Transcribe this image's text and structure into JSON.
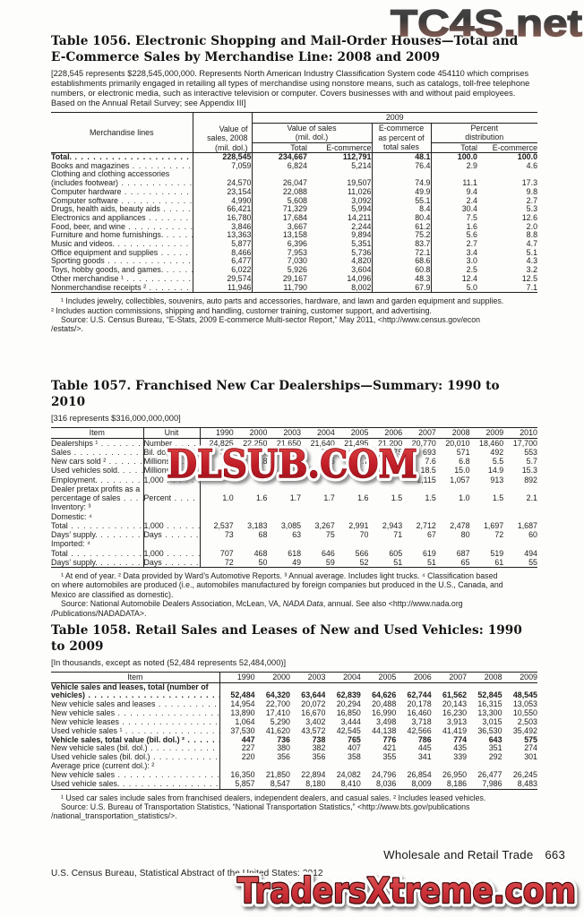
{
  "watermarks": {
    "top": "TC4S.net",
    "middle": "DLSUB.COM",
    "bottom": "TradersXtreme.com",
    "red_accent": "#c4242b"
  },
  "footer": {
    "section_title": "Wholesale and Retail Trade",
    "page_number": "663",
    "census_line": "U.S. Census Bureau, Statistical Abstract of the United States: 2012"
  },
  "t1056": {
    "title_line1": "Table 1056. Electronic Shopping and Mail-Order Houses—Total and",
    "title_line2": "E-Commerce Sales by Merchandise Line: 2008 and 2009",
    "note_lines": [
      "[228,545 represents $228,545,000,000. Represents North American Industry Classification System code 454110 which comprises",
      "establishments primarily engaged in retailing all types of merchandise using nonstore means, such as catalogs, toll-free telephone",
      "numbers, or electronic media, such as interactive television or computer. Covers businesses with and without paid employees.",
      "Based on the Annual Retail Survey; see Appendix III]"
    ],
    "header": {
      "merch": "Merchandise lines",
      "v2008_l1": "Value of",
      "v2008_l2": "sales, 2008",
      "v2008_l3": "(mil. dol.)",
      "year": "2009",
      "vos_l1": "Value of sales",
      "vos_l2": "(mil. dol.)",
      "epct_l1": "E-commerce",
      "epct_l2": "as percent of",
      "epct_l3": "total sales",
      "pd_l1": "Percent",
      "pd_l2": "distribution",
      "total": "Total",
      "ecommerce": "E-commerce",
      "total2": "Total",
      "ecommerce2": "E-commerce"
    },
    "rows": [
      {
        "label": "Total.",
        "indent": 2,
        "bold": true,
        "leader": true,
        "values": [
          "228,545",
          "234,667",
          "112,791",
          "48.1",
          "100.0",
          "100.0"
        ]
      },
      {
        "label": "Books and magazines",
        "indent": 0,
        "leader": true,
        "values": [
          "7,059",
          "6,824",
          "5,214",
          "76.4",
          "2.9",
          "4.6"
        ]
      },
      {
        "label": "Clothing and clothing accessories",
        "indent": 0,
        "leader": false,
        "values": [
          "",
          "",
          "",
          "",
          "",
          ""
        ]
      },
      {
        "label": "(includes footwear)",
        "indent": 1,
        "leader": true,
        "values": [
          "24,570",
          "26,047",
          "19,507",
          "74.9",
          "11.1",
          "17.3"
        ]
      },
      {
        "label": "Computer hardware",
        "indent": 0,
        "leader": true,
        "values": [
          "23,154",
          "22,088",
          "11,026",
          "49.9",
          "9.4",
          "9.8"
        ]
      },
      {
        "label": "Computer software",
        "indent": 0,
        "leader": true,
        "values": [
          "4,990",
          "5,608",
          "3,092",
          "55.1",
          "2.4",
          "2.7"
        ]
      },
      {
        "label": "Drugs, health aids, beauty aids",
        "indent": 0,
        "leader": true,
        "values": [
          "66,421",
          "71,329",
          "5,994",
          "8.4",
          "30.4",
          "5.3"
        ]
      },
      {
        "label": "Electronics and appliances",
        "indent": 0,
        "leader": true,
        "values": [
          "16,780",
          "17,684",
          "14,211",
          "80.4",
          "7.5",
          "12.6"
        ]
      },
      {
        "label": "Food, beer, and wine",
        "indent": 0,
        "leader": true,
        "values": [
          "3,846",
          "3,667",
          "2,244",
          "61.2",
          "1.6",
          "2.0"
        ]
      },
      {
        "label": "Furniture and home furnishings.",
        "indent": 0,
        "leader": true,
        "values": [
          "13,363",
          "13,158",
          "9,894",
          "75.2",
          "5.6",
          "8.8"
        ]
      },
      {
        "label": "Music and videos.",
        "indent": 0,
        "leader": true,
        "values": [
          "5,877",
          "6,396",
          "5,351",
          "83.7",
          "2.7",
          "4.7"
        ]
      },
      {
        "label": "Office equipment and supplies",
        "indent": 0,
        "leader": true,
        "values": [
          "8,466",
          "7,953",
          "5,736",
          "72.1",
          "3.4",
          "5.1"
        ]
      },
      {
        "label": "Sporting goods",
        "indent": 0,
        "leader": true,
        "values": [
          "6,477",
          "7,030",
          "4,820",
          "68.6",
          "3.0",
          "4.3"
        ]
      },
      {
        "label": "Toys, hobby goods, and games.",
        "indent": 0,
        "leader": true,
        "values": [
          "6,022",
          "5,926",
          "3,604",
          "60.8",
          "2.5",
          "3.2"
        ]
      },
      {
        "label": "Other merchandise ¹",
        "indent": 0,
        "leader": true,
        "values": [
          "29,574",
          "29,167",
          "14,096",
          "48.3",
          "12.4",
          "12.5"
        ]
      },
      {
        "label": "Nonmerchandise receipts ²",
        "indent": 0,
        "leader": true,
        "values": [
          "11,946",
          "11,790",
          "8,002",
          "67.9",
          "5.0",
          "7.1"
        ]
      }
    ],
    "footnotes": [
      {
        "indent": true,
        "parts": [
          {
            "t": "¹ Includes jewelry, collectibles, souvenirs, auto parts and accessories, hardware, and lawn and garden equipment and supplies."
          }
        ]
      },
      {
        "indent": false,
        "parts": [
          {
            "t": "² Includes auction commissions, shipping and handling, customer training, customer support, and advertising."
          }
        ]
      },
      {
        "indent": true,
        "parts": [
          {
            "t": "Source: U.S. Census Bureau, “E-Stats, 2009 E-commerce Multi-sector Report,” May 2011, <http://www.census.gov/econ"
          }
        ]
      },
      {
        "indent": false,
        "parts": [
          {
            "t": "/estats/>."
          }
        ]
      }
    ]
  },
  "t1057": {
    "title": "Table 1057. Franchised New Car Dealerships—Summary: 1990 to 2010",
    "note_lines": [
      "[316 represents $316,000,000,000]"
    ],
    "header": {
      "item": "Item",
      "unit": "Unit"
    },
    "years": [
      "1990",
      "2000",
      "2003",
      "2004",
      "2005",
      "2006",
      "2007",
      "2008",
      "2009",
      "2010"
    ],
    "rows": [
      {
        "label": "Dealerships ¹",
        "indent": 0,
        "leader": true,
        "unit": "Number",
        "unit_leader": true,
        "values": [
          "24,825",
          "22,250",
          "21,650",
          "21,640",
          "21,495",
          "21,200",
          "20,770",
          "20,010",
          "18,460",
          "17,700"
        ]
      },
      {
        "label": "Sales",
        "indent": 0,
        "leader": true,
        "unit": "Bil. dol.",
        "unit_leader": true,
        "values": [
          "316",
          "650",
          "699",
          "714",
          "699",
          "675",
          "693",
          "571",
          "492",
          "553"
        ]
      },
      {
        "label": "New cars sold ²",
        "indent": 0,
        "leader": true,
        "unit": "Millions.",
        "unit_leader": true,
        "values": [
          "9.3",
          "8.8",
          "7.6",
          "7.5",
          "7.7",
          "7.8",
          "7.6",
          "6.8",
          "5.5",
          "5.7"
        ]
      },
      {
        "label": "Used vehicles sold.",
        "indent": 0,
        "leader": true,
        "unit": "Millions.",
        "unit_leader": true,
        "values": [
          "",
          "",
          "",
          "",
          "",
          "",
          "18.5",
          "15.0",
          "14.9",
          "15.3"
        ]
      },
      {
        "label": "Employment.",
        "indent": 0,
        "leader": true,
        "unit": "1,000",
        "unit_leader": true,
        "values": [
          "",
          "",
          "",
          "",
          "",
          "",
          "1,115",
          "1,057",
          "913",
          "892"
        ]
      },
      {
        "label": "Dealer pretax profits as a",
        "indent": 0,
        "leader": false,
        "unit": "",
        "unit_leader": false,
        "values": [
          "",
          "",
          "",
          "",
          "",
          "",
          "",
          "",
          "",
          ""
        ]
      },
      {
        "label": "percentage of sales",
        "indent": 1,
        "leader": true,
        "unit": "Percent",
        "unit_leader": true,
        "values": [
          "1.0",
          "1.6",
          "1.7",
          "1.7",
          "1.6",
          "1.5",
          "1.5",
          "1.0",
          "1.5",
          "2.1"
        ]
      },
      {
        "label": "Inventory: ³",
        "indent": 0,
        "leader": false,
        "unit": "",
        "unit_leader": false,
        "values": [
          "",
          "",
          "",
          "",
          "",
          "",
          "",
          "",
          "",
          ""
        ]
      },
      {
        "label": "Domestic: ⁴",
        "indent": 1,
        "leader": false,
        "unit": "",
        "unit_leader": false,
        "values": [
          "",
          "",
          "",
          "",
          "",
          "",
          "",
          "",
          "",
          ""
        ]
      },
      {
        "label": "Total",
        "indent": 2,
        "leader": true,
        "unit": "1,000",
        "unit_leader": true,
        "values": [
          "2,537",
          "3,183",
          "3,085",
          "3,267",
          "2,991",
          "2,943",
          "2,712",
          "2,478",
          "1,697",
          "1,687"
        ]
      },
      {
        "label": "Days’ supply.",
        "indent": 2,
        "leader": true,
        "unit": "Days",
        "unit_leader": true,
        "values": [
          "73",
          "68",
          "63",
          "75",
          "70",
          "71",
          "67",
          "80",
          "72",
          "60"
        ]
      },
      {
        "label": "Imported: ⁴",
        "indent": 1,
        "leader": false,
        "unit": "",
        "unit_leader": false,
        "values": [
          "",
          "",
          "",
          "",
          "",
          "",
          "",
          "",
          "",
          ""
        ]
      },
      {
        "label": "Total",
        "indent": 2,
        "leader": true,
        "unit": "1,000",
        "unit_leader": true,
        "values": [
          "707",
          "468",
          "618",
          "646",
          "566",
          "605",
          "619",
          "687",
          "519",
          "494"
        ]
      },
      {
        "label": "Days’ supply.",
        "indent": 2,
        "leader": true,
        "unit": "Days",
        "unit_leader": true,
        "values": [
          "72",
          "50",
          "49",
          "59",
          "52",
          "51",
          "51",
          "65",
          "61",
          "55"
        ]
      }
    ],
    "footnotes": [
      {
        "indent": true,
        "parts": [
          {
            "t": "¹ At end of year. ² Data provided by Ward’s Automotive Reports. ³ Annual average. Includes light trucks. ⁴ Classification based"
          }
        ]
      },
      {
        "indent": false,
        "parts": [
          {
            "t": "on where automobiles are produced (i.e., automobiles manufactured by foreign companies but produced in the U.S., Canada, and"
          }
        ]
      },
      {
        "indent": false,
        "parts": [
          {
            "t": "Mexico are classified as domestic)."
          }
        ]
      },
      {
        "indent": true,
        "parts": [
          {
            "t": "Source: National Automobile Dealers Association, McLean, VA, "
          },
          {
            "t": "NADA Data",
            "i": true
          },
          {
            "t": ", annual. See also <http://www.nada.org"
          }
        ]
      },
      {
        "indent": false,
        "parts": [
          {
            "t": "/Publications/NADADATA>."
          }
        ]
      }
    ]
  },
  "t1058": {
    "title": "Table 1058. Retail Sales and Leases of New and Used Vehicles: 1990 to 2009",
    "note_lines": [
      "[In thousands, except as noted (52,484 represents 52,484,000)]"
    ],
    "header": {
      "item": "Item"
    },
    "years": [
      "1990",
      "2000",
      "2003",
      "2004",
      "2005",
      "2006",
      "2007",
      "2008",
      "2009"
    ],
    "rows": [
      {
        "label": "Vehicle sales and leases, total (number of",
        "indent": 2,
        "bold": true,
        "leader": false,
        "values": [
          "",
          "",
          "",
          "",
          "",
          "",
          "",
          "",
          ""
        ]
      },
      {
        "label": "vehicles)",
        "indent": 3,
        "bold": true,
        "leader": true,
        "values": [
          "52,484",
          "64,320",
          "63,644",
          "62,839",
          "64,626",
          "62,744",
          "61,562",
          "52,845",
          "48,545"
        ]
      },
      {
        "label": "New vehicle sales and leases",
        "indent": 0,
        "leader": true,
        "values": [
          "14,954",
          "22,700",
          "20,072",
          "20,294",
          "20,488",
          "20,178",
          "20,143",
          "16,315",
          "13,053"
        ]
      },
      {
        "label": "New vehicle sales",
        "indent": 2,
        "leader": true,
        "values": [
          "13,890",
          "17,410",
          "16,670",
          "16,850",
          "16,990",
          "16,460",
          "16,230",
          "13,300",
          "10,550"
        ]
      },
      {
        "label": "New vehicle leases",
        "indent": 2,
        "leader": true,
        "values": [
          "1,064",
          "5,290",
          "3,402",
          "3,444",
          "3,498",
          "3,718",
          "3,913",
          "3,015",
          "2,503"
        ]
      },
      {
        "label": "Used vehicle sales ¹",
        "indent": 0,
        "leader": true,
        "values": [
          "37,530",
          "41,620",
          "43,572",
          "42,545",
          "44,138",
          "42,566",
          "41,419",
          "36,530",
          "35,492"
        ]
      },
      {
        "label": "Vehicle sales, total value (bil. dol.) ²",
        "indent": 2,
        "bold": true,
        "leader": true,
        "values": [
          "447",
          "736",
          "738",
          "765",
          "776",
          "786",
          "774",
          "643",
          "575"
        ]
      },
      {
        "label": "New vehicle sales (bil. dol.)",
        "indent": 0,
        "leader": true,
        "values": [
          "227",
          "380",
          "382",
          "407",
          "421",
          "445",
          "435",
          "351",
          "274"
        ]
      },
      {
        "label": "Used vehicle sales (bil. dol.)",
        "indent": 0,
        "leader": true,
        "values": [
          "220",
          "356",
          "356",
          "358",
          "355",
          "341",
          "339",
          "292",
          "301"
        ]
      },
      {
        "label": "Average price (current dol.): ²",
        "indent": 1,
        "leader": false,
        "values": [
          "",
          "",
          "",
          "",
          "",
          "",
          "",
          "",
          ""
        ]
      },
      {
        "label": "New vehicle sales",
        "indent": 0,
        "leader": true,
        "values": [
          "16,350",
          "21,850",
          "22,894",
          "24,082",
          "24,796",
          "26,854",
          "26,950",
          "26,477",
          "26,245"
        ]
      },
      {
        "label": "Used vehicle sales.",
        "indent": 0,
        "leader": true,
        "values": [
          "5,857",
          "8,547",
          "8,180",
          "8,410",
          "8,036",
          "8,009",
          "8,186",
          "7,986",
          "8,483"
        ]
      }
    ],
    "footnotes": [
      {
        "indent": true,
        "parts": [
          {
            "t": "¹ Used car sales include sales from franchised dealers, independent dealers, and casual sales. ² Includes leased vehicles."
          }
        ]
      },
      {
        "indent": true,
        "parts": [
          {
            "t": "Source: U.S. Bureau of Transportation Statistics, “National Transportation Statistics,” <http://www.bts.gov/publications"
          }
        ]
      },
      {
        "indent": false,
        "parts": [
          {
            "t": "/national_transportation_statistics/>."
          }
        ]
      }
    ]
  }
}
